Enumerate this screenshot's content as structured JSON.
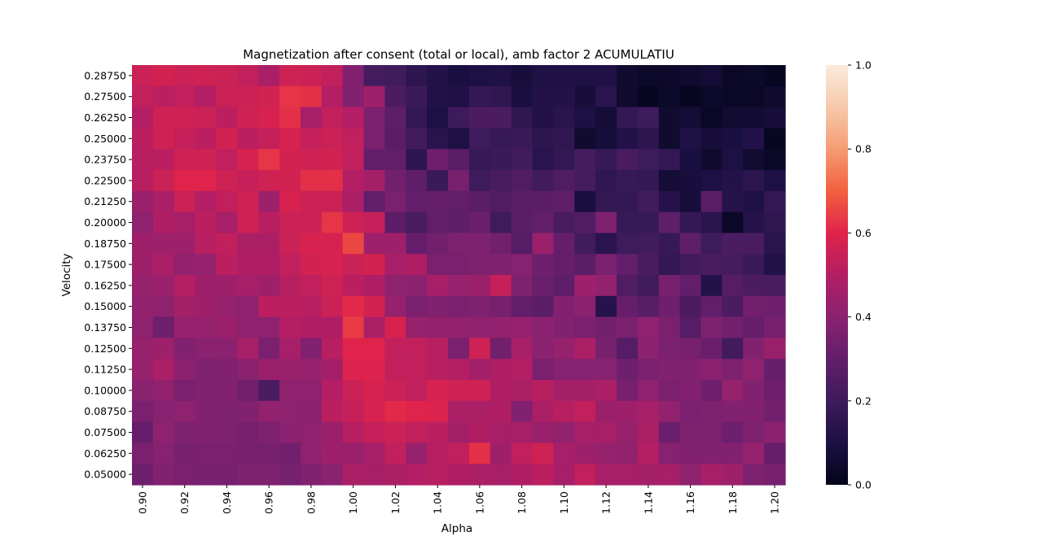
{
  "chart_data": {
    "type": "heatmap",
    "title": "Magnetization after consent (total or local), amb factor 2 ACUMULATIU",
    "xlabel": "Alpha",
    "ylabel": "Velocity",
    "x_tick_labels": [
      "0.90",
      "0.92",
      "0.94",
      "0.96",
      "0.98",
      "1.00",
      "1.02",
      "1.04",
      "1.06",
      "1.08",
      "1.10",
      "1.12",
      "1.14",
      "1.16",
      "1.18",
      "1.20"
    ],
    "y_tick_labels": [
      "0.28750",
      "0.27500",
      "0.26250",
      "0.25000",
      "0.23750",
      "0.22500",
      "0.21250",
      "0.20000",
      "0.18750",
      "0.17500",
      "0.16250",
      "0.15000",
      "0.13750",
      "0.12500",
      "0.11250",
      "0.10000",
      "0.08750",
      "0.07500",
      "0.06250",
      "0.05000"
    ],
    "colorbar": {
      "range": [
        0,
        1
      ],
      "ticks": [
        "0.0",
        "0.2",
        "0.4",
        "0.6",
        "0.8",
        "1.0"
      ],
      "colormap": "rocket"
    },
    "grid": false,
    "values": [
      [
        0.55,
        0.57,
        0.55,
        0.56,
        0.55,
        0.53,
        0.48,
        0.56,
        0.55,
        0.53,
        0.38,
        0.22,
        0.21,
        0.15,
        0.12,
        0.09,
        0.1,
        0.11,
        0.08,
        0.11,
        0.11,
        0.11,
        0.11,
        0.05,
        0.04,
        0.04,
        0.05,
        0.07,
        0.03,
        0.04,
        0.02
      ],
      [
        0.53,
        0.52,
        0.53,
        0.5,
        0.55,
        0.55,
        0.57,
        0.63,
        0.62,
        0.5,
        0.38,
        0.45,
        0.24,
        0.19,
        0.12,
        0.11,
        0.17,
        0.16,
        0.09,
        0.12,
        0.12,
        0.08,
        0.14,
        0.05,
        0.02,
        0.04,
        0.02,
        0.04,
        0.03,
        0.03,
        0.05
      ],
      [
        0.5,
        0.56,
        0.56,
        0.55,
        0.52,
        0.56,
        0.58,
        0.62,
        0.47,
        0.53,
        0.5,
        0.36,
        0.29,
        0.17,
        0.1,
        0.2,
        0.24,
        0.24,
        0.16,
        0.12,
        0.14,
        0.1,
        0.07,
        0.17,
        0.2,
        0.05,
        0.07,
        0.03,
        0.06,
        0.06,
        0.08
      ],
      [
        0.52,
        0.56,
        0.54,
        0.52,
        0.57,
        0.52,
        0.54,
        0.58,
        0.54,
        0.55,
        0.53,
        0.36,
        0.28,
        0.21,
        0.14,
        0.11,
        0.2,
        0.18,
        0.19,
        0.15,
        0.16,
        0.05,
        0.08,
        0.12,
        0.15,
        0.05,
        0.11,
        0.08,
        0.09,
        0.12,
        0.02
      ],
      [
        0.51,
        0.52,
        0.56,
        0.56,
        0.53,
        0.58,
        0.63,
        0.57,
        0.56,
        0.57,
        0.53,
        0.3,
        0.3,
        0.15,
        0.33,
        0.28,
        0.18,
        0.19,
        0.21,
        0.14,
        0.17,
        0.22,
        0.18,
        0.23,
        0.2,
        0.17,
        0.09,
        0.05,
        0.1,
        0.06,
        0.03
      ],
      [
        0.51,
        0.55,
        0.6,
        0.6,
        0.56,
        0.54,
        0.56,
        0.57,
        0.62,
        0.62,
        0.5,
        0.46,
        0.34,
        0.29,
        0.19,
        0.35,
        0.2,
        0.23,
        0.25,
        0.21,
        0.25,
        0.22,
        0.16,
        0.18,
        0.17,
        0.07,
        0.08,
        0.1,
        0.12,
        0.15,
        0.1
      ],
      [
        0.44,
        0.48,
        0.55,
        0.5,
        0.53,
        0.56,
        0.45,
        0.58,
        0.55,
        0.55,
        0.48,
        0.3,
        0.36,
        0.3,
        0.31,
        0.3,
        0.28,
        0.25,
        0.28,
        0.28,
        0.29,
        0.09,
        0.17,
        0.17,
        0.21,
        0.13,
        0.08,
        0.28,
        0.13,
        0.11,
        0.17
      ],
      [
        0.41,
        0.49,
        0.47,
        0.52,
        0.47,
        0.56,
        0.51,
        0.55,
        0.55,
        0.63,
        0.56,
        0.54,
        0.28,
        0.23,
        0.3,
        0.29,
        0.32,
        0.2,
        0.28,
        0.3,
        0.23,
        0.25,
        0.37,
        0.18,
        0.18,
        0.29,
        0.17,
        0.14,
        0.03,
        0.13,
        0.16
      ],
      [
        0.45,
        0.45,
        0.45,
        0.51,
        0.53,
        0.48,
        0.48,
        0.55,
        0.58,
        0.58,
        0.66,
        0.45,
        0.45,
        0.31,
        0.34,
        0.37,
        0.37,
        0.34,
        0.26,
        0.44,
        0.31,
        0.21,
        0.14,
        0.2,
        0.21,
        0.18,
        0.29,
        0.2,
        0.24,
        0.23,
        0.14
      ],
      [
        0.45,
        0.48,
        0.42,
        0.43,
        0.52,
        0.49,
        0.49,
        0.53,
        0.57,
        0.58,
        0.55,
        0.57,
        0.47,
        0.49,
        0.36,
        0.36,
        0.37,
        0.38,
        0.39,
        0.33,
        0.31,
        0.28,
        0.36,
        0.3,
        0.23,
        0.17,
        0.21,
        0.23,
        0.22,
        0.19,
        0.12
      ],
      [
        0.43,
        0.44,
        0.5,
        0.45,
        0.45,
        0.47,
        0.45,
        0.51,
        0.53,
        0.56,
        0.52,
        0.49,
        0.41,
        0.4,
        0.47,
        0.43,
        0.44,
        0.54,
        0.37,
        0.32,
        0.29,
        0.45,
        0.42,
        0.25,
        0.21,
        0.35,
        0.3,
        0.12,
        0.26,
        0.24,
        0.23
      ],
      [
        0.42,
        0.41,
        0.46,
        0.45,
        0.43,
        0.41,
        0.52,
        0.52,
        0.51,
        0.55,
        0.61,
        0.57,
        0.43,
        0.36,
        0.38,
        0.36,
        0.37,
        0.35,
        0.3,
        0.28,
        0.38,
        0.4,
        0.13,
        0.31,
        0.27,
        0.33,
        0.24,
        0.3,
        0.24,
        0.34,
        0.33
      ],
      [
        0.41,
        0.33,
        0.43,
        0.43,
        0.44,
        0.41,
        0.41,
        0.5,
        0.49,
        0.49,
        0.64,
        0.48,
        0.58,
        0.43,
        0.42,
        0.42,
        0.41,
        0.42,
        0.43,
        0.4,
        0.38,
        0.36,
        0.34,
        0.36,
        0.41,
        0.36,
        0.27,
        0.37,
        0.34,
        0.31,
        0.35
      ],
      [
        0.43,
        0.45,
        0.38,
        0.4,
        0.4,
        0.47,
        0.36,
        0.47,
        0.38,
        0.51,
        0.6,
        0.6,
        0.53,
        0.53,
        0.51,
        0.36,
        0.56,
        0.34,
        0.47,
        0.4,
        0.43,
        0.48,
        0.35,
        0.26,
        0.4,
        0.36,
        0.35,
        0.32,
        0.21,
        0.38,
        0.44
      ],
      [
        0.43,
        0.48,
        0.4,
        0.37,
        0.38,
        0.4,
        0.44,
        0.44,
        0.43,
        0.46,
        0.59,
        0.59,
        0.53,
        0.53,
        0.51,
        0.5,
        0.46,
        0.49,
        0.5,
        0.36,
        0.39,
        0.39,
        0.39,
        0.33,
        0.36,
        0.38,
        0.38,
        0.4,
        0.37,
        0.41,
        0.31
      ],
      [
        0.4,
        0.42,
        0.36,
        0.38,
        0.38,
        0.34,
        0.24,
        0.41,
        0.41,
        0.5,
        0.55,
        0.58,
        0.55,
        0.53,
        0.58,
        0.56,
        0.56,
        0.49,
        0.48,
        0.51,
        0.46,
        0.46,
        0.48,
        0.35,
        0.41,
        0.36,
        0.38,
        0.33,
        0.43,
        0.38,
        0.33
      ],
      [
        0.36,
        0.39,
        0.41,
        0.38,
        0.37,
        0.38,
        0.42,
        0.41,
        0.4,
        0.52,
        0.54,
        0.58,
        0.61,
        0.6,
        0.59,
        0.48,
        0.48,
        0.49,
        0.38,
        0.48,
        0.51,
        0.53,
        0.44,
        0.45,
        0.47,
        0.42,
        0.36,
        0.37,
        0.38,
        0.38,
        0.34
      ],
      [
        0.31,
        0.41,
        0.37,
        0.38,
        0.37,
        0.35,
        0.37,
        0.4,
        0.41,
        0.44,
        0.51,
        0.54,
        0.55,
        0.53,
        0.52,
        0.46,
        0.49,
        0.47,
        0.47,
        0.44,
        0.42,
        0.47,
        0.47,
        0.43,
        0.48,
        0.32,
        0.37,
        0.37,
        0.33,
        0.37,
        0.4
      ],
      [
        0.36,
        0.39,
        0.35,
        0.36,
        0.36,
        0.35,
        0.35,
        0.34,
        0.41,
        0.45,
        0.44,
        0.47,
        0.53,
        0.43,
        0.51,
        0.53,
        0.62,
        0.45,
        0.53,
        0.56,
        0.47,
        0.45,
        0.43,
        0.42,
        0.5,
        0.39,
        0.38,
        0.38,
        0.38,
        0.43,
        0.31
      ],
      [
        0.33,
        0.38,
        0.36,
        0.35,
        0.35,
        0.37,
        0.37,
        0.35,
        0.38,
        0.4,
        0.48,
        0.47,
        0.48,
        0.5,
        0.51,
        0.49,
        0.48,
        0.47,
        0.49,
        0.52,
        0.47,
        0.53,
        0.47,
        0.47,
        0.46,
        0.47,
        0.41,
        0.47,
        0.45,
        0.37,
        0.35
      ]
    ]
  }
}
